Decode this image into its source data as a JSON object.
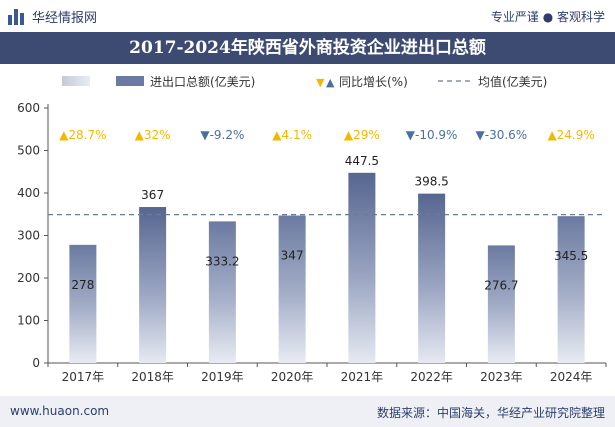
{
  "header": {
    "brand": "华经情报网",
    "tagline": "专业严谨 ● 客观科学"
  },
  "footer": {
    "url": "www.huaon.com",
    "source": "数据来源：中国海关，华经产业研究院整理"
  },
  "colors": {
    "title_bg": "#3d4b73",
    "bar": "#6b7a9e",
    "bar_highlight": "#5a6a94",
    "up": "#f5b800",
    "down": "#4a6fa5",
    "avg": "#6a7b99"
  },
  "chart_data": {
    "type": "bar",
    "title": "2017-2024年陕西省外商投资企业进出口总额",
    "categories": [
      "2017年",
      "2018年",
      "2019年",
      "2020年",
      "2021年",
      "2022年",
      "2023年",
      "2024年"
    ],
    "series": [
      {
        "name": "进出口总额(亿美元)",
        "values": [
          278,
          367,
          333.2,
          347,
          447.5,
          398.5,
          276.7,
          345.5
        ]
      }
    ],
    "value_labels": [
      "278",
      "367",
      "333.2",
      "347",
      "447.5",
      "398.5",
      "276.7",
      "345.5"
    ],
    "growth": {
      "name": "同比增长(%)",
      "labels": [
        "▲28.7%",
        "▲32%",
        "▼-9.2%",
        "▲4.1%",
        "▲29%",
        "▼-10.9%",
        "▼-30.6%",
        "▲24.9%"
      ],
      "direction": [
        "up",
        "up",
        "down",
        "up",
        "up",
        "down",
        "down",
        "up"
      ]
    },
    "average": {
      "name": "均值(亿美元)",
      "value": 349.2
    },
    "ylim": [
      0,
      600
    ],
    "yticks": [
      "0",
      "100",
      "200",
      "300",
      "400",
      "500",
      "600"
    ],
    "legend_placement": "top",
    "grid": false
  }
}
